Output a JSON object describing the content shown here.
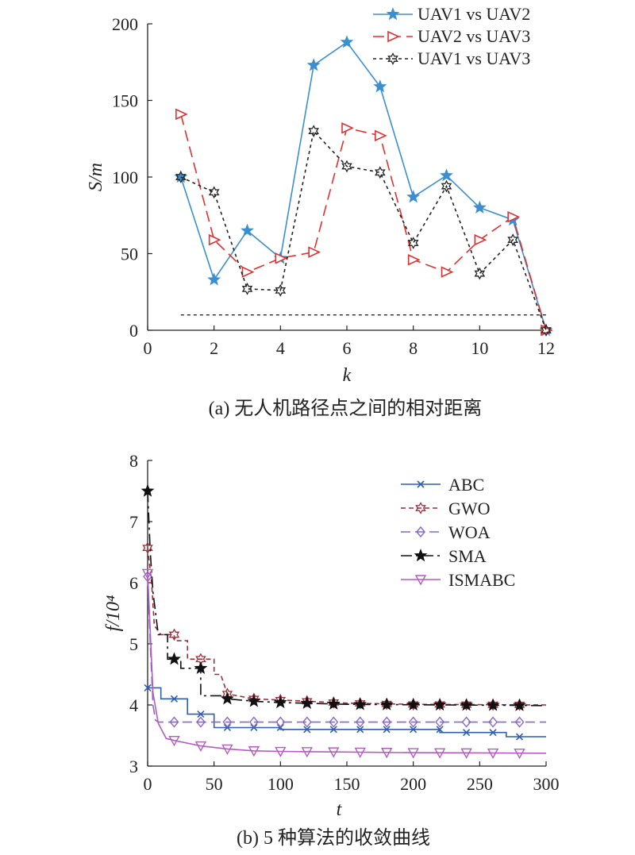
{
  "chart_data": [
    {
      "type": "line",
      "x": [
        1,
        2,
        3,
        4,
        5,
        6,
        7,
        8,
        9,
        10,
        11,
        12
      ],
      "xlabel": "k",
      "ylabel": "S/m",
      "xlim": [
        0,
        12
      ],
      "ylim": [
        0,
        200
      ],
      "xticks": [
        0,
        2,
        4,
        6,
        8,
        10,
        12
      ],
      "yticks": [
        0,
        50,
        100,
        150,
        200
      ],
      "caption": "(a) 无人机路径点之间的相对距离",
      "legend_position": "top-right",
      "series": [
        {
          "name": "UAV1 vs UAV2",
          "color": "#3b8fd0",
          "dash": "",
          "marker": "star",
          "values": [
            100,
            33,
            65,
            47,
            173,
            188,
            159,
            87,
            101,
            80,
            72,
            0
          ]
        },
        {
          "name": "UAV2 vs UAV3",
          "color": "#e03131",
          "dash": "14,7",
          "marker": "triangle-right",
          "values": [
            141,
            59,
            38,
            47,
            51,
            132,
            127,
            46,
            38,
            59,
            74,
            0
          ]
        },
        {
          "name": "UAV1 vs UAV3",
          "color": "#222222",
          "dash": "4,4",
          "marker": "hexagram",
          "values": [
            100,
            90,
            27,
            26,
            130,
            107,
            103,
            57,
            94,
            37,
            59,
            0
          ]
        }
      ],
      "reference_line": {
        "value": 10,
        "x_range": [
          1,
          12
        ]
      }
    },
    {
      "type": "line",
      "xlabel": "t",
      "ylabel": "f/10⁴",
      "xlim": [
        0,
        300
      ],
      "ylim": [
        3,
        8
      ],
      "xticks": [
        0,
        50,
        100,
        150,
        200,
        250,
        300
      ],
      "yticks": [
        3,
        4,
        5,
        6,
        7,
        8
      ],
      "caption": "(b) 5 种算法的收敛曲线",
      "legend_position": "top-right",
      "series": [
        {
          "name": "ABC",
          "color": "#2f5fad",
          "dash": "",
          "marker": "x",
          "points": [
            [
              0,
              4.28
            ],
            [
              10,
              4.28
            ],
            [
              10,
              4.1
            ],
            [
              30,
              4.1
            ],
            [
              30,
              3.85
            ],
            [
              50,
              3.85
            ],
            [
              50,
              3.63
            ],
            [
              100,
              3.63
            ],
            [
              100,
              3.6
            ],
            [
              220,
              3.6
            ],
            [
              220,
              3.55
            ],
            [
              270,
              3.55
            ],
            [
              270,
              3.48
            ],
            [
              300,
              3.48
            ]
          ],
          "marker_x": [
            0,
            20,
            40,
            60,
            80,
            100,
            120,
            140,
            160,
            180,
            200,
            220,
            240,
            260,
            280
          ]
        },
        {
          "name": "GWO",
          "color": "#9c2f3b",
          "dash": "6,4",
          "marker": "hexagram",
          "points": [
            [
              0,
              6.57
            ],
            [
              3,
              6.0
            ],
            [
              5,
              5.3
            ],
            [
              10,
              5.15
            ],
            [
              20,
              5.15
            ],
            [
              20,
              5.05
            ],
            [
              30,
              5.05
            ],
            [
              30,
              4.75
            ],
            [
              50,
              4.75
            ],
            [
              50,
              4.5
            ],
            [
              55,
              4.5
            ],
            [
              60,
              4.18
            ],
            [
              80,
              4.1
            ],
            [
              100,
              4.08
            ],
            [
              150,
              4.03
            ],
            [
              200,
              4.01
            ],
            [
              300,
              4.0
            ]
          ],
          "marker_x": [
            0,
            20,
            40,
            60,
            80,
            100,
            120,
            140,
            160,
            180,
            200,
            220,
            240,
            260,
            280
          ]
        },
        {
          "name": "WOA",
          "color": "#8a66c9",
          "dash": "12,6",
          "marker": "diamond",
          "points": [
            [
              0,
              6.1
            ],
            [
              2,
              5.0
            ],
            [
              4,
              4.0
            ],
            [
              6,
              3.75
            ],
            [
              8,
              3.72
            ],
            [
              300,
              3.72
            ]
          ],
          "marker_x": [
            0,
            20,
            40,
            60,
            80,
            100,
            120,
            140,
            160,
            180,
            200,
            220,
            240,
            260,
            280
          ]
        },
        {
          "name": "SMA",
          "color": "#111111",
          "dash": "14,5,3,5",
          "marker": "star",
          "points": [
            [
              0,
              7.5
            ],
            [
              2,
              6.5
            ],
            [
              4,
              5.85
            ],
            [
              8,
              5.15
            ],
            [
              15,
              5.15
            ],
            [
              15,
              4.75
            ],
            [
              25,
              4.75
            ],
            [
              25,
              4.6
            ],
            [
              40,
              4.6
            ],
            [
              40,
              4.15
            ],
            [
              55,
              4.15
            ],
            [
              60,
              4.1
            ],
            [
              80,
              4.06
            ],
            [
              100,
              4.04
            ],
            [
              150,
              4.01
            ],
            [
              300,
              3.99
            ]
          ],
          "marker_x": [
            0,
            20,
            40,
            60,
            80,
            100,
            120,
            140,
            160,
            180,
            200,
            220,
            240,
            260,
            280
          ]
        },
        {
          "name": "ISMABC",
          "color": "#b35cc0",
          "dash": "",
          "marker": "triangle-down",
          "points": [
            [
              0,
              6.15
            ],
            [
              2,
              5.2
            ],
            [
              4,
              4.2
            ],
            [
              8,
              3.7
            ],
            [
              14,
              3.45
            ],
            [
              20,
              3.42
            ],
            [
              40,
              3.33
            ],
            [
              60,
              3.28
            ],
            [
              80,
              3.25
            ],
            [
              100,
              3.24
            ],
            [
              150,
              3.23
            ],
            [
              200,
              3.22
            ],
            [
              300,
              3.21
            ]
          ],
          "marker_x": [
            0,
            20,
            40,
            60,
            80,
            100,
            120,
            140,
            160,
            180,
            200,
            220,
            240,
            260,
            280
          ]
        }
      ]
    }
  ]
}
